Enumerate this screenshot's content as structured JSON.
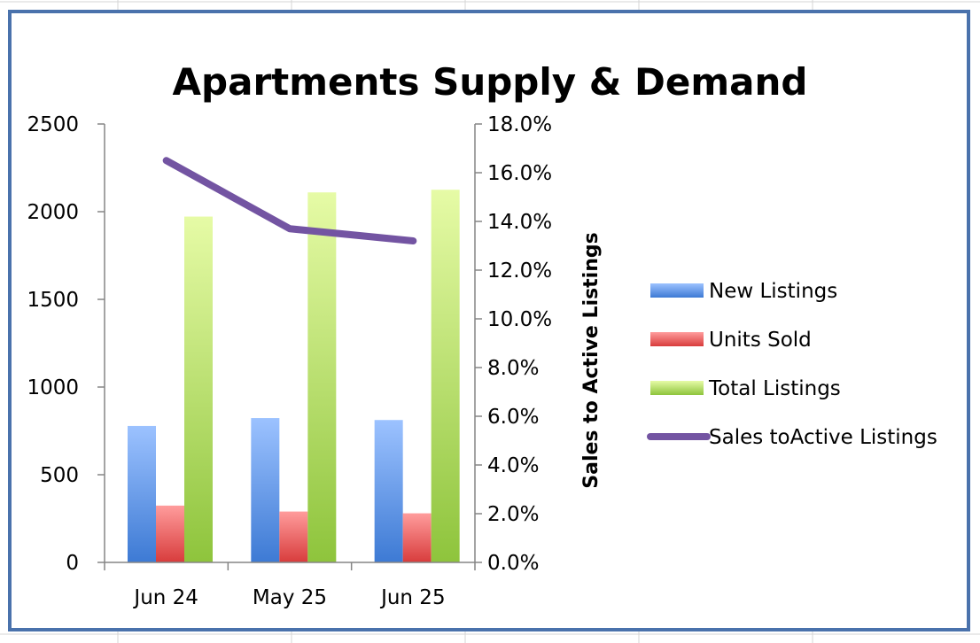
{
  "chart_data": {
    "type": "bar",
    "title": "Apartments Supply & Demand",
    "categories": [
      "Jun 24",
      "May 25",
      "Jun 25"
    ],
    "series": [
      {
        "name": "New Listings",
        "type": "bar",
        "axis": "left",
        "values": [
          778,
          823,
          812
        ]
      },
      {
        "name": "Units Sold",
        "type": "bar",
        "axis": "left",
        "values": [
          324,
          290,
          280
        ]
      },
      {
        "name": "Total Listings",
        "type": "bar",
        "axis": "left",
        "values": [
          1972,
          2110,
          2125
        ]
      },
      {
        "name": "Sales toActive Listings",
        "type": "line",
        "axis": "right",
        "values": [
          16.5,
          13.7,
          13.2
        ]
      }
    ],
    "y_left": {
      "label": "",
      "min": 0,
      "max": 2500,
      "ticks": [
        "0",
        "500",
        "1000",
        "1500",
        "2000",
        "2500"
      ]
    },
    "y_right": {
      "label": "Sales to Active Listings",
      "min": 0,
      "max": 18,
      "ticks": [
        "0.0%",
        "2.0%",
        "4.0%",
        "6.0%",
        "8.0%",
        "10.0%",
        "12.0%",
        "14.0%",
        "16.0%",
        "18.0%"
      ]
    },
    "xlabel": "",
    "grid": false,
    "legend_position": "right",
    "colors": {
      "new_listings": "#5b93e6",
      "units_sold": "#e65a5a",
      "total_listings": "#a6d24e",
      "line": "#7354a2",
      "frame": "#4a72ac"
    }
  }
}
